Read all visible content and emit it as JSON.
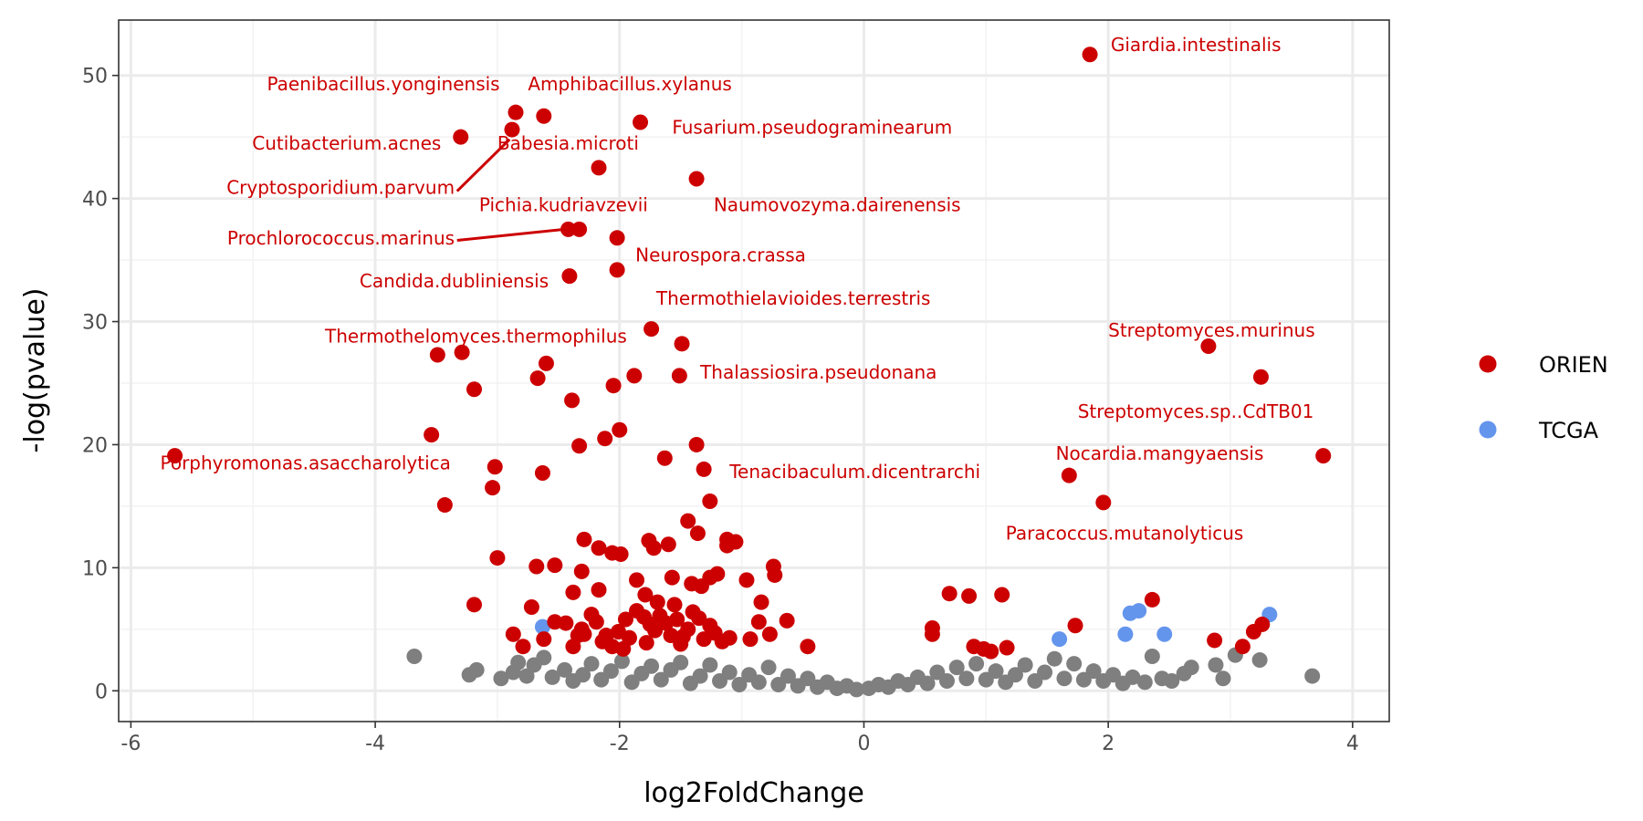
{
  "chart_data": {
    "type": "scatter",
    "xlabel": "log2FoldChange",
    "ylabel": "-log(pvalue)",
    "xlim": [
      -6.1,
      4.3
    ],
    "ylim": [
      -2.5,
      54.5
    ],
    "x_ticks": [
      -6,
      -4,
      -2,
      0,
      2,
      4
    ],
    "y_ticks": [
      0,
      10,
      20,
      30,
      40,
      50
    ],
    "grid": true,
    "legend_position": "right",
    "colors": {
      "ORIEN": "#cc0000",
      "TCGA": "#6495ed",
      "ns": "#7f7f7f"
    },
    "legend": [
      {
        "name": "ORIEN",
        "color": "#cc0000"
      },
      {
        "name": "TCGA",
        "color": "#6495ed"
      }
    ],
    "series": [
      {
        "name": "ORIEN",
        "points": [
          [
            1.85,
            51.7
          ],
          [
            -2.85,
            47.0
          ],
          [
            -2.62,
            46.7
          ],
          [
            -1.83,
            46.2
          ],
          [
            -3.3,
            45.0
          ],
          [
            -2.88,
            45.6
          ],
          [
            -2.17,
            42.5
          ],
          [
            -1.37,
            41.6
          ],
          [
            -2.42,
            37.5
          ],
          [
            -2.33,
            37.5
          ],
          [
            -2.02,
            36.8
          ],
          [
            -2.02,
            34.2
          ],
          [
            -2.41,
            33.7
          ],
          [
            -1.74,
            29.4
          ],
          [
            -1.49,
            28.2
          ],
          [
            2.82,
            28.0
          ],
          [
            3.25,
            25.5
          ],
          [
            -3.49,
            27.3
          ],
          [
            -3.29,
            27.5
          ],
          [
            -2.6,
            26.6
          ],
          [
            -2.67,
            25.4
          ],
          [
            -1.88,
            25.6
          ],
          [
            -1.51,
            25.6
          ],
          [
            -2.05,
            24.8
          ],
          [
            -3.19,
            24.5
          ],
          [
            -2.39,
            23.6
          ],
          [
            -5.64,
            19.1
          ],
          [
            -3.54,
            20.8
          ],
          [
            -2.0,
            21.2
          ],
          [
            -2.12,
            20.5
          ],
          [
            -2.33,
            19.9
          ],
          [
            -1.37,
            20.0
          ],
          [
            -1.63,
            18.9
          ],
          [
            3.76,
            19.1
          ],
          [
            -3.02,
            18.2
          ],
          [
            -2.63,
            17.7
          ],
          [
            -1.31,
            18.0
          ],
          [
            1.68,
            17.5
          ],
          [
            -3.04,
            16.5
          ],
          [
            -3.43,
            15.1
          ],
          [
            -1.26,
            15.4
          ],
          [
            1.96,
            15.3
          ],
          [
            -1.44,
            13.8
          ],
          [
            -1.36,
            12.8
          ],
          [
            -2.29,
            12.3
          ],
          [
            -1.76,
            12.2
          ],
          [
            -1.12,
            12.3
          ],
          [
            -1.6,
            11.9
          ],
          [
            -1.72,
            11.6
          ],
          [
            -2.17,
            11.6
          ],
          [
            -1.99,
            11.1
          ],
          [
            -2.06,
            11.2
          ],
          [
            -1.12,
            11.8
          ],
          [
            -1.05,
            12.1
          ],
          [
            -3.0,
            10.8
          ],
          [
            -2.68,
            10.1
          ],
          [
            -2.53,
            10.2
          ],
          [
            -0.74,
            10.1
          ],
          [
            -0.73,
            9.4
          ],
          [
            -1.2,
            9.5
          ],
          [
            -1.57,
            9.2
          ],
          [
            -1.41,
            8.7
          ],
          [
            -1.33,
            8.5
          ],
          [
            -1.86,
            9.0
          ],
          [
            -2.31,
            9.7
          ],
          [
            -0.96,
            9.0
          ],
          [
            -1.26,
            9.2
          ],
          [
            -3.19,
            7.0
          ],
          [
            -2.72,
            6.8
          ],
          [
            -2.38,
            8.0
          ],
          [
            -2.17,
            8.2
          ],
          [
            -1.79,
            7.8
          ],
          [
            -1.69,
            7.2
          ],
          [
            -1.55,
            7.0
          ],
          [
            0.7,
            7.9
          ],
          [
            0.86,
            7.7
          ],
          [
            1.13,
            7.8
          ],
          [
            2.36,
            7.4
          ],
          [
            -0.84,
            7.2
          ],
          [
            -2.87,
            4.6
          ],
          [
            -2.79,
            3.6
          ],
          [
            -2.62,
            4.2
          ],
          [
            -2.53,
            5.6
          ],
          [
            -2.44,
            5.5
          ],
          [
            -2.38,
            3.6
          ],
          [
            -2.34,
            4.5
          ],
          [
            -2.31,
            5.0
          ],
          [
            -2.23,
            6.2
          ],
          [
            -2.19,
            5.6
          ],
          [
            -2.14,
            4.0
          ],
          [
            -2.11,
            4.5
          ],
          [
            -2.06,
            3.6
          ],
          [
            -2.01,
            4.8
          ],
          [
            -1.95,
            5.8
          ],
          [
            -1.92,
            4.3
          ],
          [
            -1.86,
            6.5
          ],
          [
            -1.8,
            6.0
          ],
          [
            -1.75,
            5.4
          ],
          [
            -1.71,
            4.9
          ],
          [
            -1.67,
            6.1
          ],
          [
            -1.62,
            5.5
          ],
          [
            -1.58,
            4.5
          ],
          [
            -1.53,
            5.8
          ],
          [
            -1.48,
            4.4
          ],
          [
            -1.44,
            5.0
          ],
          [
            -1.4,
            6.4
          ],
          [
            -1.35,
            5.9
          ],
          [
            -1.31,
            4.2
          ],
          [
            -1.26,
            5.3
          ],
          [
            -1.22,
            4.7
          ],
          [
            -1.16,
            4.0
          ],
          [
            -1.1,
            4.3
          ],
          [
            -0.86,
            5.6
          ],
          [
            -0.77,
            4.6
          ],
          [
            -0.63,
            5.7
          ],
          [
            -0.46,
            3.6
          ],
          [
            -1.78,
            3.9
          ],
          [
            -1.97,
            3.4
          ],
          [
            -2.29,
            4.6
          ],
          [
            -1.5,
            3.8
          ],
          [
            -0.93,
            4.2
          ],
          [
            0.56,
            4.6
          ],
          [
            0.56,
            5.1
          ],
          [
            0.9,
            3.6
          ],
          [
            0.98,
            3.4
          ],
          [
            1.04,
            3.2
          ],
          [
            1.17,
            3.5
          ],
          [
            1.73,
            5.3
          ],
          [
            2.87,
            4.1
          ],
          [
            3.1,
            3.6
          ],
          [
            3.19,
            4.8
          ],
          [
            3.26,
            5.4
          ]
        ]
      },
      {
        "name": "TCGA",
        "points": [
          [
            -2.63,
            5.2
          ],
          [
            1.6,
            4.2
          ],
          [
            2.14,
            4.6
          ],
          [
            2.18,
            6.3
          ],
          [
            2.25,
            6.5
          ],
          [
            2.46,
            4.6
          ],
          [
            3.32,
            6.2
          ]
        ]
      },
      {
        "name": "ns",
        "points": [
          [
            -3.68,
            2.8
          ],
          [
            -3.23,
            1.3
          ],
          [
            -3.17,
            1.7
          ],
          [
            -2.97,
            1.0
          ],
          [
            -2.87,
            1.5
          ],
          [
            -2.83,
            2.3
          ],
          [
            -2.76,
            1.2
          ],
          [
            -2.7,
            2.1
          ],
          [
            -2.62,
            2.7
          ],
          [
            -2.55,
            1.1
          ],
          [
            -2.45,
            1.7
          ],
          [
            -2.38,
            0.8
          ],
          [
            -2.3,
            1.3
          ],
          [
            -2.23,
            2.2
          ],
          [
            -2.15,
            0.9
          ],
          [
            -2.07,
            1.6
          ],
          [
            -1.98,
            2.4
          ],
          [
            -1.9,
            0.7
          ],
          [
            -1.82,
            1.4
          ],
          [
            -1.74,
            2.0
          ],
          [
            -1.66,
            0.9
          ],
          [
            -1.58,
            1.7
          ],
          [
            -1.5,
            2.3
          ],
          [
            -1.42,
            0.6
          ],
          [
            -1.34,
            1.2
          ],
          [
            -1.26,
            2.1
          ],
          [
            -1.18,
            0.8
          ],
          [
            -1.1,
            1.5
          ],
          [
            -1.02,
            0.5
          ],
          [
            -0.94,
            1.3
          ],
          [
            -0.86,
            0.7
          ],
          [
            -0.78,
            1.9
          ],
          [
            -0.7,
            0.5
          ],
          [
            -0.62,
            1.2
          ],
          [
            -0.54,
            0.4
          ],
          [
            -0.46,
            1.0
          ],
          [
            -0.38,
            0.3
          ],
          [
            -0.3,
            0.7
          ],
          [
            -0.22,
            0.2
          ],
          [
            -0.14,
            0.4
          ],
          [
            -0.06,
            0.1
          ],
          [
            0.04,
            0.2
          ],
          [
            0.12,
            0.5
          ],
          [
            0.2,
            0.3
          ],
          [
            0.28,
            0.8
          ],
          [
            0.36,
            0.5
          ],
          [
            0.44,
            1.1
          ],
          [
            0.52,
            0.6
          ],
          [
            0.6,
            1.5
          ],
          [
            0.68,
            0.8
          ],
          [
            0.76,
            1.9
          ],
          [
            0.84,
            1.0
          ],
          [
            0.92,
            2.2
          ],
          [
            1.0,
            0.9
          ],
          [
            1.08,
            1.6
          ],
          [
            1.16,
            0.7
          ],
          [
            1.24,
            1.3
          ],
          [
            1.32,
            2.1
          ],
          [
            1.4,
            0.8
          ],
          [
            1.48,
            1.5
          ],
          [
            1.56,
            2.6
          ],
          [
            1.64,
            1.0
          ],
          [
            1.72,
            2.2
          ],
          [
            1.8,
            0.9
          ],
          [
            1.88,
            1.6
          ],
          [
            1.96,
            0.8
          ],
          [
            2.04,
            1.3
          ],
          [
            2.12,
            0.6
          ],
          [
            2.2,
            1.1
          ],
          [
            2.3,
            0.7
          ],
          [
            2.36,
            2.8
          ],
          [
            2.44,
            1.0
          ],
          [
            2.52,
            0.8
          ],
          [
            2.62,
            1.4
          ],
          [
            2.68,
            1.9
          ],
          [
            2.88,
            2.1
          ],
          [
            2.94,
            1.0
          ],
          [
            3.04,
            2.9
          ],
          [
            3.24,
            2.5
          ],
          [
            3.67,
            1.2
          ]
        ]
      }
    ],
    "labels": [
      {
        "text": "Giardia.intestinalis",
        "x": 2.02,
        "y": 52.5,
        "anchor": "start"
      },
      {
        "text": "Paenibacillus.yonginensis",
        "x": -2.98,
        "y": 49.3,
        "anchor": "end"
      },
      {
        "text": "Amphibacillus.xylanus",
        "x": -2.75,
        "y": 49.3,
        "anchor": "start"
      },
      {
        "text": "Fusarium.pseudograminearum",
        "x": -1.57,
        "y": 45.8,
        "anchor": "start"
      },
      {
        "text": "Cutibacterium.acnes",
        "x": -3.46,
        "y": 44.5,
        "anchor": "end"
      },
      {
        "text": "Babesia.microti",
        "x": -3.0,
        "y": 44.5,
        "anchor": "start"
      },
      {
        "text": "Cryptosporidium.parvum",
        "x": -3.35,
        "y": 40.9,
        "anchor": "end"
      },
      {
        "text": "Pichia.kudriavzevii",
        "x": -3.15,
        "y": 39.5,
        "anchor": "start"
      },
      {
        "text": "Naumovozyma.dairenensis",
        "x": -1.23,
        "y": 39.5,
        "anchor": "start"
      },
      {
        "text": "Prochlorococcus.marinus",
        "x": -3.35,
        "y": 36.8,
        "anchor": "end"
      },
      {
        "text": "Neurospora.crassa",
        "x": -1.87,
        "y": 35.4,
        "anchor": "start"
      },
      {
        "text": "Candida.dubliniensis",
        "x": -2.58,
        "y": 33.3,
        "anchor": "end"
      },
      {
        "text": "Thermothielavioides.terrestris",
        "x": -1.7,
        "y": 31.9,
        "anchor": "start"
      },
      {
        "text": "Streptomyces.murinus",
        "x": 2.0,
        "y": 29.3,
        "anchor": "start"
      },
      {
        "text": "Thermothelomyces.thermophilus",
        "x": -1.94,
        "y": 28.8,
        "anchor": "end"
      },
      {
        "text": "Thalassiosira.pseudonana",
        "x": -1.34,
        "y": 25.9,
        "anchor": "start"
      },
      {
        "text": "Streptomyces.sp..CdTB01",
        "x": 1.75,
        "y": 22.7,
        "anchor": "start"
      },
      {
        "text": "Nocardia.mangyaensis",
        "x": 1.57,
        "y": 19.3,
        "anchor": "start"
      },
      {
        "text": "Porphyromonas.asaccharolytica",
        "x": -5.76,
        "y": 18.5,
        "anchor": "start"
      },
      {
        "text": "Tenacibaculum.dicentrarchi",
        "x": -1.1,
        "y": 17.8,
        "anchor": "start"
      },
      {
        "text": "Paracoccus.mutanolyticus",
        "x": 1.16,
        "y": 12.8,
        "anchor": "start"
      }
    ],
    "segments": [
      {
        "from": [
          -3.33,
          40.6
        ],
        "to": [
          -2.9,
          44.8
        ]
      },
      {
        "from": [
          -3.33,
          36.6
        ],
        "to": [
          -2.45,
          37.5
        ]
      }
    ]
  }
}
